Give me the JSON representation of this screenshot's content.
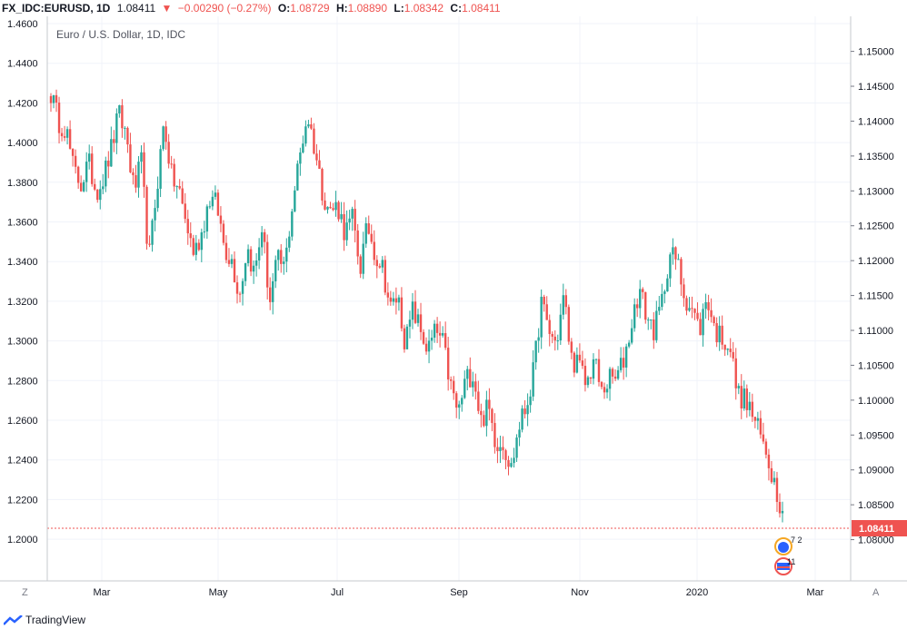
{
  "header": {
    "symbol": "FX_IDC:EURUSD, 1D",
    "last": "1.08411",
    "change": "−0.00290 (−0.27%)",
    "open_label": "O:",
    "open": "1.08729",
    "high_label": "H:",
    "high": "1.08890",
    "low_label": "L:",
    "low": "1.08342",
    "close_label": "C:",
    "close": "1.08411"
  },
  "chart_data": {
    "type": "candlestick",
    "title": "Euro / U.S. Dollar, 1D, IDC",
    "left_axis_ticks": [
      "1.4600",
      "1.4400",
      "1.4200",
      "1.4000",
      "1.3800",
      "1.3600",
      "1.3400",
      "1.3200",
      "1.3000",
      "1.2800",
      "1.2600",
      "1.2400",
      "1.2200",
      "1.2000"
    ],
    "right_axis_ticks": [
      "1.15000",
      "1.14500",
      "1.14000",
      "1.13500",
      "1.13000",
      "1.12500",
      "1.12000",
      "1.11500",
      "1.11000",
      "1.10500",
      "1.10000",
      "1.09500",
      "1.09000",
      "1.08500",
      "1.08000"
    ],
    "x_labels": [
      "Mar",
      "May",
      "Jul",
      "Sep",
      "Nov",
      "2020",
      "Mar"
    ],
    "last_price_label": "1.08411",
    "last_price": 1.08411,
    "ylim_right": [
      1.07695,
      1.15216
    ],
    "colors": {
      "up": "#26a69a",
      "down": "#ef5350",
      "grid": "#f0f3fa",
      "axis": "#787b86"
    },
    "anchors": [
      [
        1.144,
        1.14,
        1.139,
        1.133,
        1.131,
        1.134,
        1.13,
        1.132,
        1.136,
        1.141,
        1.138,
        1.13,
        1.134,
        1.12,
        1.13
      ],
      [
        1.14,
        1.132,
        1.13,
        1.125,
        1.121,
        1.124,
        1.129,
        1.128,
        1.122,
        1.12,
        1.115,
        1.122,
        1.118,
        1.125,
        1.114
      ],
      [
        1.12,
        1.119,
        1.128,
        1.135,
        1.141,
        1.136,
        1.13,
        1.127,
        1.128,
        1.124,
        1.126,
        1.119,
        1.125,
        1.121,
        1.119
      ],
      [
        1.113,
        1.115,
        1.108,
        1.113,
        1.11,
        1.107,
        1.11,
        1.108,
        1.102,
        1.098,
        1.103,
        1.104,
        1.097,
        1.099,
        1.094
      ],
      [
        1.094,
        1.09,
        1.096,
        1.099,
        1.104,
        1.114,
        1.11,
        1.108,
        1.115,
        1.106,
        1.105,
        1.102,
        1.106,
        1.101,
        1.103
      ],
      [
        1.103,
        1.106,
        1.111,
        1.116,
        1.112,
        1.11,
        1.114,
        1.121,
        1.12,
        1.115,
        1.113,
        1.11,
        1.115,
        1.11,
        1.109
      ],
      [
        1.108,
        1.101,
        1.1,
        1.098,
        1.095,
        1.092,
        1.088,
        1.0841
      ]
    ]
  },
  "indicators": {
    "dividends": "7 2",
    "earnings": "11"
  },
  "footer": {
    "brand": "TradingView"
  },
  "controls": {
    "left_scale": "Z",
    "auto_scale": "A"
  }
}
